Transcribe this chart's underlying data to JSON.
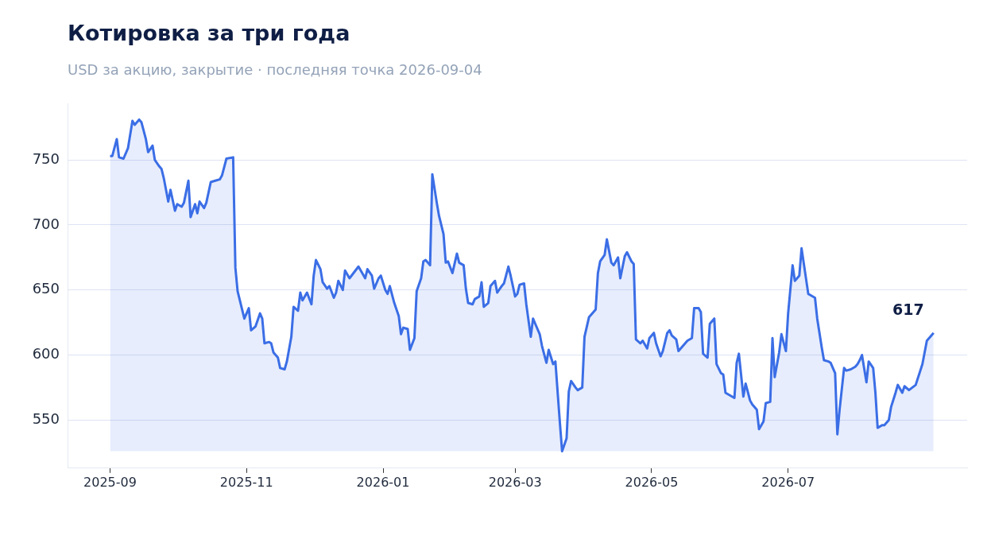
{
  "chart_data": {
    "type": "area",
    "title": "Котировка за три года",
    "subtitle": "USD за акцию, закрытие · последняя точка 2026-09-04",
    "color": "#3b6ee6",
    "grid": "y",
    "xlim": [
      "2025-08-13",
      "2026-09-19"
    ],
    "xticks": [
      "2025-09",
      "2025-11",
      "2026-01",
      "2026-03",
      "2026-05",
      "2026-07"
    ],
    "ylim": [
      513,
      793
    ],
    "yticks": [
      550,
      600,
      650,
      700,
      750
    ],
    "annotations": [
      {
        "text": "617",
        "x": "2026-09-04",
        "y": 617
      }
    ],
    "x": [
      "2025-09-01",
      "2025-09-02",
      "2025-09-04",
      "2025-09-05",
      "2025-09-07",
      "2025-09-09",
      "2025-09-11",
      "2025-09-12",
      "2025-09-14",
      "2025-09-15",
      "2025-09-17",
      "2025-09-18",
      "2025-09-20",
      "2025-09-21",
      "2025-09-23",
      "2025-09-24",
      "2025-09-25",
      "2025-09-27",
      "2025-09-28",
      "2025-09-30",
      "2025-10-01",
      "2025-10-03",
      "2025-10-04",
      "2025-10-06",
      "2025-10-07",
      "2025-10-09",
      "2025-10-10",
      "2025-10-11",
      "2025-10-13",
      "2025-10-14",
      "2025-10-16",
      "2025-10-18",
      "2025-10-20",
      "2025-10-21",
      "2025-10-23",
      "2025-10-26",
      "2025-10-27",
      "2025-10-28",
      "2025-10-31",
      "2025-11-02",
      "2025-11-03",
      "2025-11-05",
      "2025-11-07",
      "2025-11-08",
      "2025-11-09",
      "2025-11-11",
      "2025-11-12",
      "2025-11-13",
      "2025-11-15",
      "2025-11-16",
      "2025-11-18",
      "2025-11-19",
      "2025-11-21",
      "2025-11-22",
      "2025-11-24",
      "2025-11-25",
      "2025-11-26",
      "2025-11-28",
      "2025-11-30",
      "2025-12-01",
      "2025-12-02",
      "2025-12-04",
      "2025-12-05",
      "2025-12-07",
      "2025-12-08",
      "2025-12-10",
      "2025-12-11",
      "2025-12-12",
      "2025-12-14",
      "2025-12-15",
      "2025-12-17",
      "2025-12-21",
      "2025-12-23",
      "2025-12-24",
      "2025-12-25",
      "2025-12-27",
      "2025-12-28",
      "2025-12-30",
      "2025-12-31",
      "2026-01-02",
      "2026-01-03",
      "2026-01-04",
      "2026-01-06",
      "2026-01-08",
      "2026-01-09",
      "2026-01-10",
      "2026-01-12",
      "2026-01-13",
      "2026-01-15",
      "2026-01-16",
      "2026-01-18",
      "2026-01-19",
      "2026-01-20",
      "2026-01-22",
      "2026-01-23",
      "2026-01-25",
      "2026-01-26",
      "2026-01-28",
      "2026-01-29",
      "2026-01-30",
      "2026-02-01",
      "2026-02-03",
      "2026-02-04",
      "2026-02-06",
      "2026-02-07",
      "2026-02-08",
      "2026-02-10",
      "2026-02-11",
      "2026-02-13",
      "2026-02-14",
      "2026-02-15",
      "2026-02-17",
      "2026-02-18",
      "2026-02-20",
      "2026-02-21",
      "2026-02-23",
      "2026-02-24",
      "2026-02-26",
      "2026-02-27",
      "2026-03-01",
      "2026-03-02",
      "2026-03-03",
      "2026-03-05",
      "2026-03-06",
      "2026-03-08",
      "2026-03-09",
      "2026-03-10",
      "2026-03-12",
      "2026-03-13",
      "2026-03-15",
      "2026-03-16",
      "2026-03-18",
      "2026-03-19",
      "2026-03-21",
      "2026-03-22",
      "2026-03-24",
      "2026-03-25",
      "2026-03-26",
      "2026-03-28",
      "2026-03-29",
      "2026-03-31",
      "2026-04-01",
      "2026-04-03",
      "2026-04-04",
      "2026-04-06",
      "2026-04-07",
      "2026-04-08",
      "2026-04-10",
      "2026-04-11",
      "2026-04-13",
      "2026-04-14",
      "2026-04-16",
      "2026-04-17",
      "2026-04-19",
      "2026-04-20",
      "2026-04-22",
      "2026-04-23",
      "2026-04-24",
      "2026-04-26",
      "2026-04-27",
      "2026-04-29",
      "2026-04-30",
      "2026-05-02",
      "2026-05-03",
      "2026-05-05",
      "2026-05-06",
      "2026-05-08",
      "2026-05-09",
      "2026-05-10",
      "2026-05-12",
      "2026-05-13",
      "2026-05-17",
      "2026-05-19",
      "2026-05-20",
      "2026-05-22",
      "2026-05-23",
      "2026-05-24",
      "2026-05-26",
      "2026-05-27",
      "2026-05-29",
      "2026-05-30",
      "2026-06-01",
      "2026-06-02",
      "2026-06-03",
      "2026-06-05",
      "2026-06-07",
      "2026-06-08",
      "2026-06-09",
      "2026-06-11",
      "2026-06-12",
      "2026-06-14",
      "2026-06-15",
      "2026-06-17",
      "2026-06-18",
      "2026-06-20",
      "2026-06-21",
      "2026-06-23",
      "2026-06-24",
      "2026-06-25",
      "2026-06-27",
      "2026-06-28",
      "2026-06-30",
      "2026-07-01",
      "2026-07-03",
      "2026-07-04",
      "2026-07-06",
      "2026-07-07",
      "2026-07-10",
      "2026-07-11",
      "2026-07-13",
      "2026-07-14",
      "2026-07-16",
      "2026-07-17",
      "2026-07-19",
      "2026-07-20",
      "2026-07-22",
      "2026-07-23",
      "2026-07-24",
      "2026-07-26",
      "2026-07-27",
      "2026-07-29",
      "2026-07-31",
      "2026-08-01",
      "2026-08-02",
      "2026-08-03",
      "2026-08-05",
      "2026-08-06",
      "2026-08-08",
      "2026-08-09",
      "2026-08-10",
      "2026-08-12",
      "2026-08-13",
      "2026-08-15",
      "2026-08-16",
      "2026-08-18",
      "2026-08-19",
      "2026-08-21",
      "2026-08-22",
      "2026-08-24",
      "2026-08-27",
      "2026-08-30",
      "2026-09-01",
      "2026-09-04"
    ],
    "values": [
      753,
      753,
      766,
      752,
      751,
      759,
      780,
      777,
      781,
      779,
      766,
      756,
      761,
      750,
      745,
      743,
      736,
      718,
      727,
      711,
      716,
      714,
      717,
      734,
      706,
      716,
      709,
      718,
      713,
      717,
      733,
      734,
      735,
      738,
      751,
      752,
      667,
      649,
      628,
      636,
      619,
      622,
      632,
      628,
      609,
      610,
      609,
      602,
      598,
      590,
      589,
      595,
      614,
      637,
      634,
      648,
      642,
      648,
      639,
      661,
      673,
      666,
      656,
      651,
      653,
      644,
      648,
      657,
      650,
      665,
      659,
      668,
      662,
      659,
      666,
      661,
      651,
      659,
      661,
      650,
      647,
      653,
      640,
      630,
      616,
      621,
      620,
      604,
      613,
      649,
      659,
      672,
      673,
      669,
      739,
      717,
      707,
      693,
      671,
      672,
      663,
      678,
      671,
      669,
      651,
      640,
      639,
      643,
      645,
      656,
      637,
      640,
      653,
      657,
      648,
      653,
      655,
      668,
      661,
      645,
      647,
      654,
      655,
      639,
      614,
      628,
      624,
      616,
      607,
      594,
      604,
      593,
      595,
      548,
      526,
      536,
      572,
      580,
      575,
      573,
      575,
      614,
      629,
      631,
      635,
      663,
      672,
      677,
      689,
      671,
      669,
      675,
      659,
      676,
      679,
      672,
      670,
      612,
      609,
      611,
      605,
      613,
      617,
      609,
      599,
      603,
      617,
      619,
      615,
      612,
      603,
      611,
      613,
      636,
      636,
      633,
      601,
      598,
      624,
      628,
      593,
      586,
      585,
      571,
      569,
      567,
      594,
      601,
      568,
      578,
      565,
      562,
      558,
      543,
      549,
      563,
      564,
      613,
      583,
      602,
      616,
      603,
      632,
      669,
      657,
      661,
      682,
      647,
      646,
      644,
      628,
      606,
      596,
      595,
      594,
      586,
      539,
      558,
      590,
      588,
      589,
      591,
      593,
      596,
      600,
      579,
      595,
      590,
      571,
      544,
      546,
      546,
      550,
      560,
      571,
      577,
      571,
      576,
      573,
      577,
      593,
      611,
      617
    ]
  }
}
